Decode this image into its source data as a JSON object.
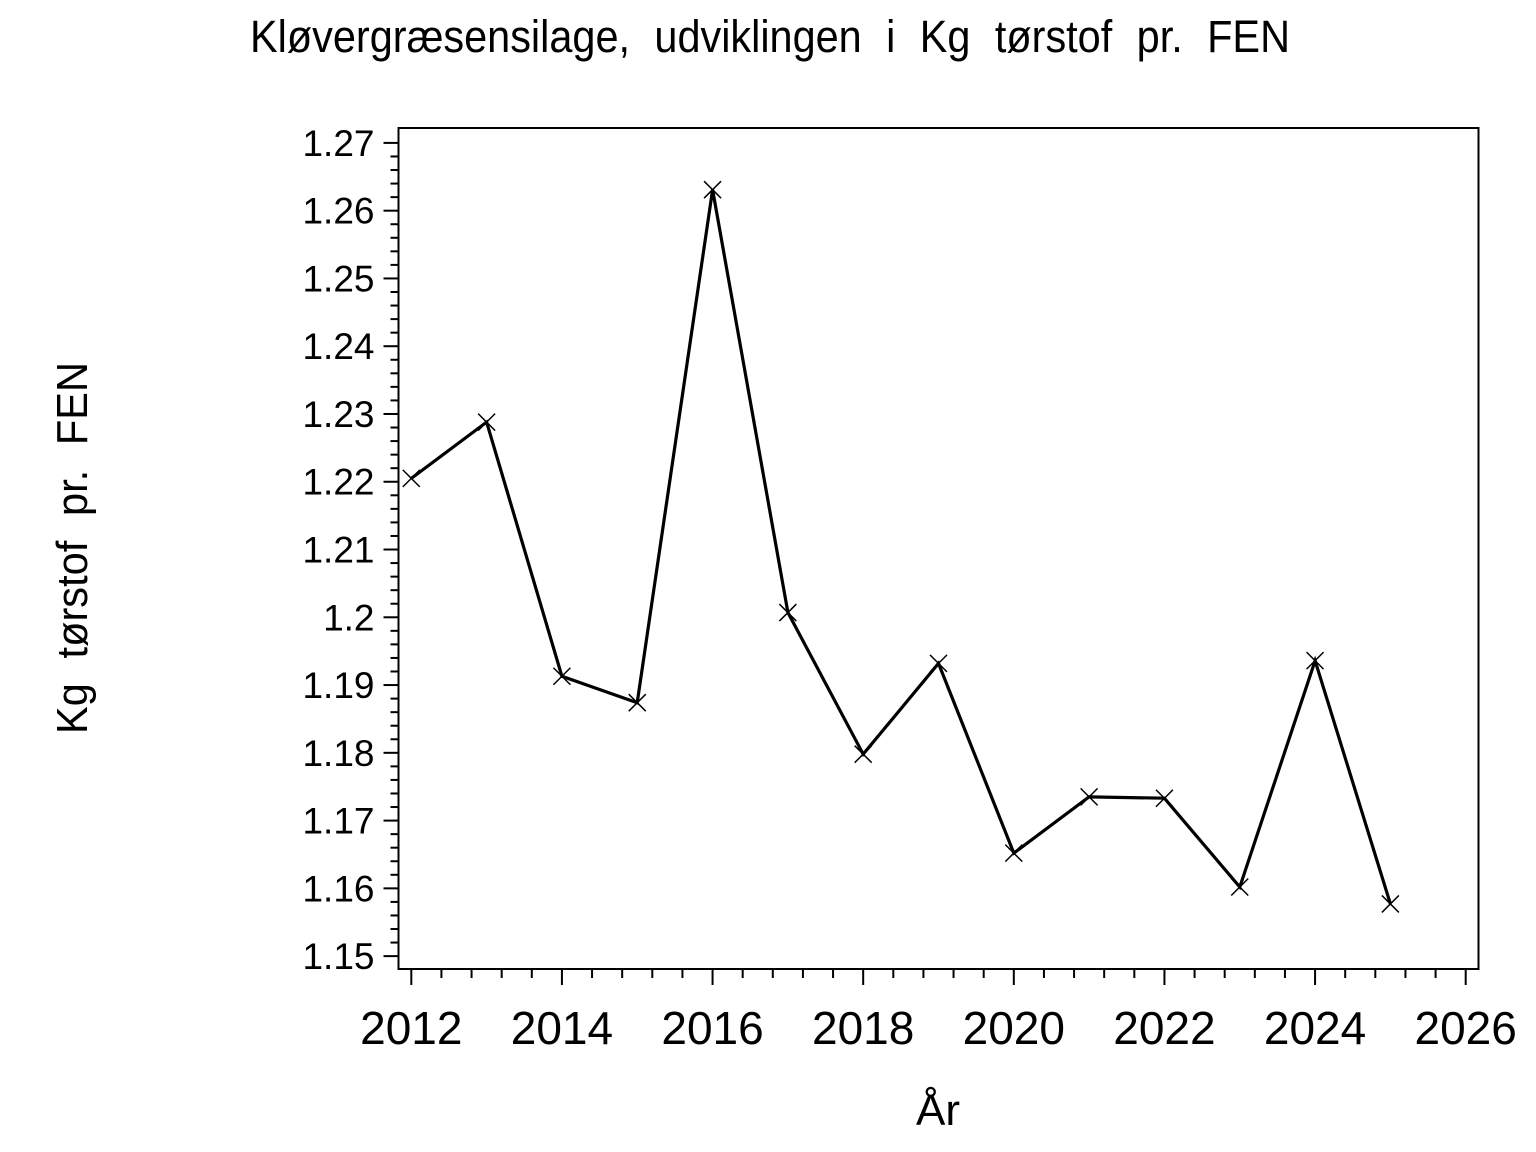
{
  "window": {
    "background": "#ffffff",
    "foreground": "#000000"
  },
  "chart_data": {
    "type": "line",
    "title": "Kløvergræsensilage, udviklingen i Kg tørstof pr. FEN",
    "xlabel": "År",
    "ylabel": "Kg tørstof pr. FEN",
    "x": [
      2012,
      2013,
      2014,
      2015,
      2016,
      2017,
      2018,
      2019,
      2020,
      2021,
      2022,
      2023,
      2024,
      2025
    ],
    "values": [
      1.2205,
      1.2288,
      1.1913,
      1.1874,
      1.2631,
      1.2007,
      1.1798,
      1.1932,
      1.1652,
      1.1735,
      1.1733,
      1.1602,
      1.1936,
      1.1577
    ],
    "marker": "x",
    "line_color": "#000000",
    "marker_color": "#000000",
    "frame_color": "#000000",
    "grid": false,
    "legend": null,
    "xlim": [
      2011.83,
      2026.17
    ],
    "ylim": [
      1.1481,
      1.2722
    ],
    "xticks": {
      "major_start": 2012,
      "major_end": 2026,
      "major_step": 2,
      "minor_step": 0.4
    },
    "yticks": {
      "major_start": 1.15,
      "major_end": 1.27,
      "major_step": 0.01,
      "minor_step": 0.002
    }
  }
}
